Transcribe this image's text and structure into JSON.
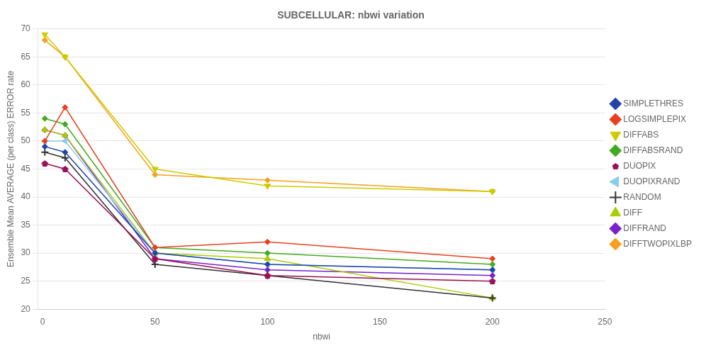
{
  "chart_data": {
    "type": "line",
    "title": "SUBCELLULAR: nbwi variation",
    "xlabel": "nbwi",
    "ylabel": "Ensemble Mean AVERAGE (per class) ERROR rate",
    "x": [
      1,
      10,
      50,
      100,
      200
    ],
    "series": [
      {
        "name": "SIMPLETHRES",
        "color": "#2244aa",
        "marker": "diamond",
        "values": [
          49,
          48,
          30,
          28,
          27
        ]
      },
      {
        "name": "LOGSIMPLEPIX",
        "color": "#e84020",
        "marker": "diamond",
        "values": [
          50,
          56,
          31,
          32,
          29
        ]
      },
      {
        "name": "DIFFABS",
        "color": "#cccc00",
        "marker": "triangle-down",
        "values": [
          69,
          65,
          45,
          42,
          41
        ]
      },
      {
        "name": "DIFFABSRAND",
        "color": "#44aa22",
        "marker": "diamond",
        "values": [
          54,
          53,
          31,
          30,
          28
        ]
      },
      {
        "name": "DUOPIX",
        "color": "#991155",
        "marker": "pentagon",
        "values": [
          46,
          45,
          29,
          26,
          25
        ]
      },
      {
        "name": "DUOPIXRAND",
        "color": "#88ccee",
        "marker": "triangle-left",
        "values": [
          50,
          50,
          30,
          28,
          27
        ]
      },
      {
        "name": "RANDOM",
        "color": "#333333",
        "marker": "plus",
        "values": [
          48,
          47,
          28,
          26,
          22
        ]
      },
      {
        "name": "DIFF",
        "color": "#aacc00",
        "marker": "triangle",
        "values": [
          52,
          51,
          30,
          29,
          22
        ]
      },
      {
        "name": "DIFFRAND",
        "color": "#7722cc",
        "marker": "diamond",
        "values": [
          52,
          51,
          29,
          27,
          26
        ]
      },
      {
        "name": "DIFFTWOPIXLBP",
        "color": "#f5a020",
        "marker": "diamond",
        "values": [
          68,
          65,
          44,
          43,
          41
        ]
      }
    ],
    "xlim": [
      -2,
      250
    ],
    "xticks": [
      0,
      50,
      100,
      150,
      200,
      250
    ],
    "ylim": [
      20,
      70
    ],
    "yticks": [
      20,
      25,
      30,
      35,
      40,
      45,
      50,
      55,
      60,
      65,
      70
    ],
    "grid": "y",
    "legend": "right"
  }
}
